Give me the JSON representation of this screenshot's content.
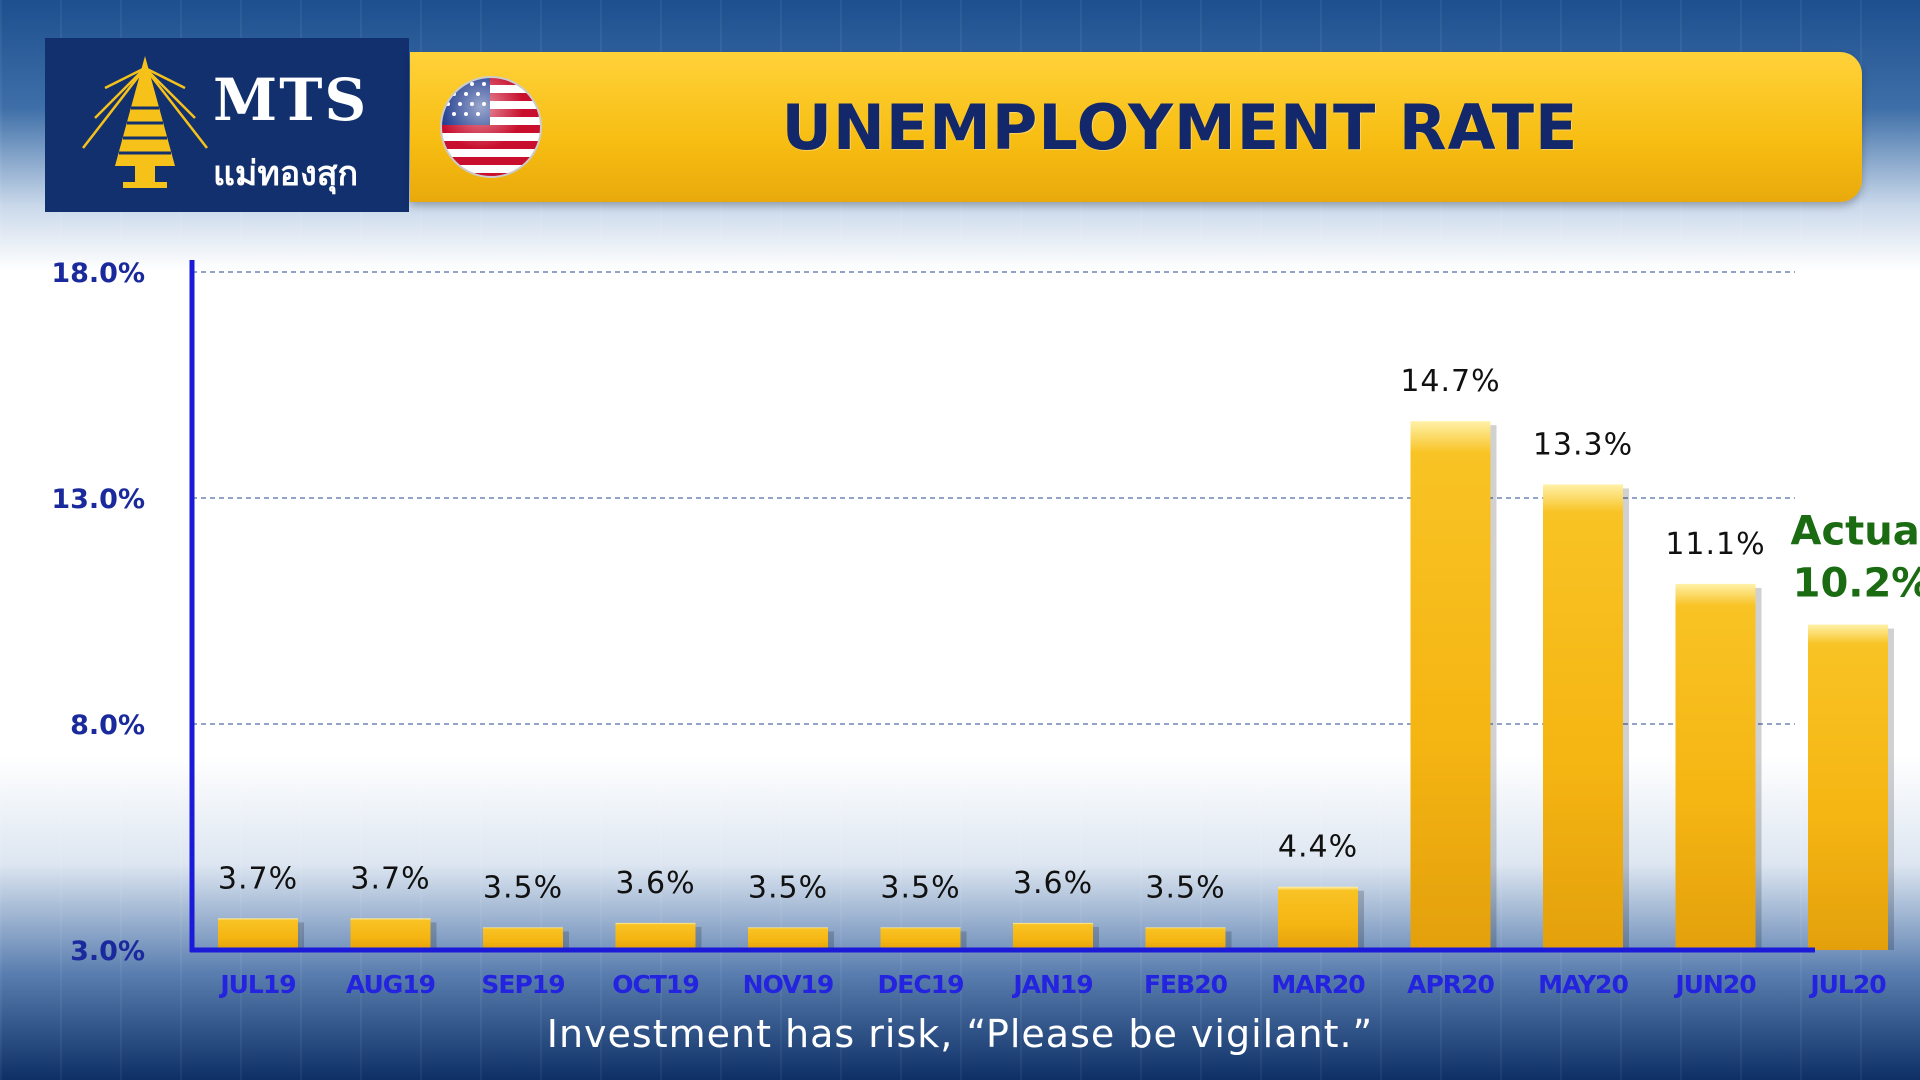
{
  "header": {
    "logo_text": "MTS",
    "logo_subtext": "แม่ทองสุก",
    "title": "UNEMPLOYMENT RATE"
  },
  "footer": {
    "disclaimer": "Investment has risk, “Please be vigilant.”"
  },
  "colors": {
    "bar": "#f5b512",
    "axis": "#1a1ad8",
    "tick_label": "#1a2a9c",
    "category_label": "#2323e0",
    "highlight": "#1a6b12",
    "title_bar": "#f7bd12",
    "logo_bg": "#13306e"
  },
  "chart_data": {
    "type": "bar",
    "categories": [
      "JUL19",
      "AUG19",
      "SEP19",
      "OCT19",
      "NOV19",
      "DEC19",
      "JAN19",
      "FEB20",
      "MAR20",
      "APR20",
      "MAY20",
      "JUN20",
      "JUL20"
    ],
    "values": [
      3.7,
      3.7,
      3.5,
      3.6,
      3.5,
      3.5,
      3.6,
      3.5,
      4.4,
      14.7,
      13.3,
      11.1,
      10.2
    ],
    "value_labels": [
      "3.7%",
      "3.7%",
      "3.5%",
      "3.6%",
      "3.5%",
      "3.5%",
      "3.6%",
      "3.5%",
      "4.4%",
      "14.7%",
      "13.3%",
      "11.1%",
      "10.2%"
    ],
    "highlight_label": "Actual",
    "highlight_index": 12,
    "yticks": [
      3.0,
      8.0,
      13.0,
      18.0
    ],
    "ytick_labels": [
      "3.0%",
      "8.0%",
      "13.0%",
      "18.0%"
    ],
    "ylim": [
      3.0,
      18.0
    ],
    "grid": true,
    "title": "UNEMPLOYMENT RATE",
    "xlabel": "",
    "ylabel": ""
  }
}
